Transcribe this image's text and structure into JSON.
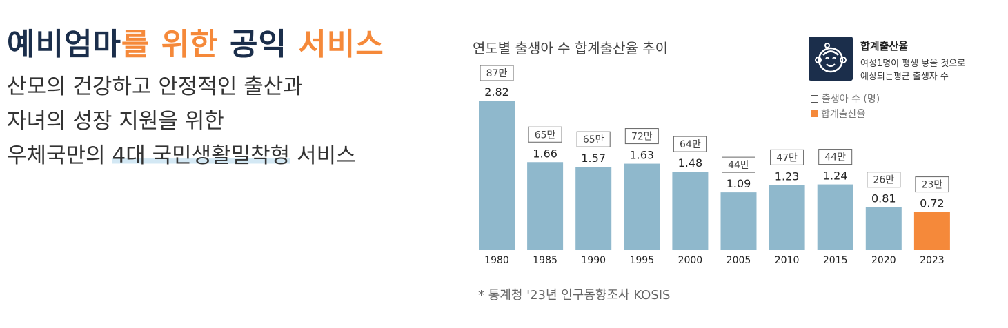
{
  "headline": {
    "part1": "예비엄마",
    "part2": "를 위한 ",
    "part3": "공익 ",
    "part4": "서비스"
  },
  "subtitle": {
    "line1": "산모의 건강하고 안정적인 출산과",
    "line2": "자녀의 성장 지원을 위한",
    "line3_pre": "우체국만의 ",
    "line3_highlight": "4대 국민생활밀착형",
    "line3_post": " 서비스"
  },
  "chart_title": "연도별 출생아 수 합계출산율 추이",
  "legend": {
    "title": "합계출산율",
    "desc_line1": "여성1명이 평생 낳을 것으로",
    "desc_line2": "예상되는평균 출생자 수",
    "item_births": "출생아 수 (명)",
    "item_rate": "합계출산율"
  },
  "source": "* 통계청 '23년 인구동향조사 KOSIS",
  "colors": {
    "navy": "#1b2e4b",
    "orange": "#f5893a",
    "bar": "#8fb8cc",
    "highlight_bar": "#f5893a"
  },
  "chart_data": {
    "type": "bar",
    "categories": [
      "1980",
      "1985",
      "1990",
      "1995",
      "2000",
      "2005",
      "2010",
      "2015",
      "2020",
      "2023"
    ],
    "series": [
      {
        "name": "합계출산율",
        "values": [
          2.82,
          1.66,
          1.57,
          1.63,
          1.48,
          1.09,
          1.23,
          1.24,
          0.81,
          0.72
        ]
      },
      {
        "name": "출생아 수 (명)",
        "values": [
          "87만",
          "65만",
          "65만",
          "72만",
          "64만",
          "44만",
          "47만",
          "44만",
          "26만",
          "23만"
        ]
      }
    ],
    "highlight_category": "2023",
    "ylim": [
      0,
      2.82
    ],
    "grid": false
  }
}
